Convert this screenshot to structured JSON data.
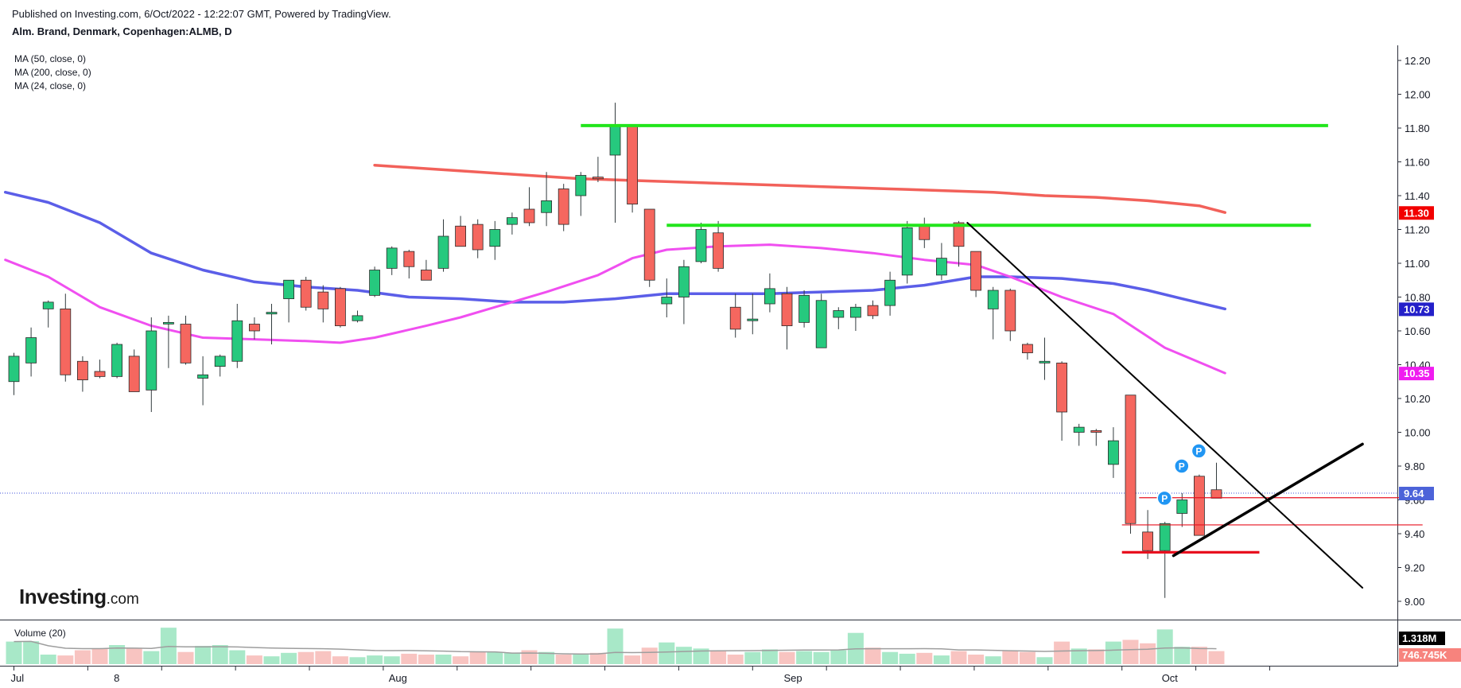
{
  "header": {
    "published": "Published on Investing.com, 6/Oct/2022 - 12:22:07 GMT, Powered by TradingView.",
    "symbol": "Alm. Brand, Denmark, Copenhagen:ALMB, D"
  },
  "legend": {
    "ma50": "MA (50, close, 0)",
    "ma200": "MA (200, close, 0)",
    "ma24": "MA (24, close, 0)",
    "volume": "Volume (20)"
  },
  "logo": {
    "text": "Investing",
    "suffix": ".com"
  },
  "colors": {
    "up": "#26c97e",
    "down": "#f5675f",
    "ma50": "#5b5ee8",
    "ma200": "#f2615a",
    "ma24": "#f04ff0",
    "support": "#e8111f",
    "resistance": "#22e51c",
    "trend": "#000000",
    "last": "#3f51d9",
    "vol_up": "#a8e8c8",
    "vol_down": "#f8c4c1"
  },
  "chart_data": {
    "type": "candlestick",
    "ylim": [
      8.95,
      12.28
    ],
    "y_ticks": [
      "12.20",
      "12.00",
      "11.80",
      "11.60",
      "11.40",
      "11.20",
      "11.00",
      "10.80",
      "10.60",
      "10.40",
      "10.20",
      "10.00",
      "9.80",
      "9.60",
      "9.40",
      "9.20",
      "9.00"
    ],
    "x_labels": [
      {
        "label": "Jul",
        "index": 0
      },
      {
        "label": "8",
        "index": 6
      },
      {
        "label": "Aug",
        "index": 22
      },
      {
        "label": "Sep",
        "index": 45
      },
      {
        "label": "Oct",
        "index": 67
      }
    ],
    "candles": [
      [
        10.3,
        10.47,
        10.22,
        10.45
      ],
      [
        10.41,
        10.62,
        10.33,
        10.56
      ],
      [
        10.73,
        10.78,
        10.62,
        10.77
      ],
      [
        10.73,
        10.82,
        10.3,
        10.34
      ],
      [
        10.42,
        10.45,
        10.24,
        10.31
      ],
      [
        10.36,
        10.43,
        10.32,
        10.33
      ],
      [
        10.33,
        10.53,
        10.32,
        10.52
      ],
      [
        10.45,
        10.49,
        10.26,
        10.24
      ],
      [
        10.25,
        10.68,
        10.12,
        10.6
      ],
      [
        10.65,
        10.69,
        10.38,
        10.65
      ],
      [
        10.64,
        10.69,
        10.4,
        10.41
      ],
      [
        10.32,
        10.45,
        10.16,
        10.34
      ],
      [
        10.39,
        10.46,
        10.33,
        10.45
      ],
      [
        10.42,
        10.76,
        10.38,
        10.66
      ],
      [
        10.64,
        10.68,
        10.55,
        10.6
      ],
      [
        10.7,
        10.76,
        10.52,
        10.71
      ],
      [
        10.79,
        10.9,
        10.65,
        10.9
      ],
      [
        10.9,
        10.92,
        10.72,
        10.74
      ],
      [
        10.83,
        10.87,
        10.65,
        10.73
      ],
      [
        10.85,
        10.86,
        10.62,
        10.63
      ],
      [
        10.66,
        10.72,
        10.65,
        10.69
      ],
      [
        10.81,
        10.98,
        10.8,
        10.96
      ],
      [
        10.97,
        11.1,
        10.93,
        11.09
      ],
      [
        11.07,
        11.08,
        10.91,
        10.98
      ],
      [
        10.96,
        11.02,
        10.9,
        10.9
      ],
      [
        10.97,
        11.26,
        10.95,
        11.16
      ],
      [
        11.22,
        11.28,
        11.1,
        11.1
      ],
      [
        11.23,
        11.26,
        11.03,
        11.08
      ],
      [
        11.1,
        11.25,
        11.02,
        11.2
      ],
      [
        11.23,
        11.3,
        11.17,
        11.27
      ],
      [
        11.32,
        11.45,
        11.22,
        11.24
      ],
      [
        11.3,
        11.54,
        11.22,
        11.37
      ],
      [
        11.44,
        11.47,
        11.19,
        11.23
      ],
      [
        11.4,
        11.54,
        11.28,
        11.52
      ],
      [
        11.51,
        11.63,
        11.48,
        11.5
      ],
      [
        11.64,
        11.95,
        11.24,
        11.82
      ],
      [
        11.82,
        11.82,
        11.3,
        11.35
      ],
      [
        11.32,
        11.32,
        10.86,
        10.9
      ],
      [
        10.76,
        10.91,
        10.68,
        10.8
      ],
      [
        10.8,
        11.02,
        10.64,
        10.98
      ],
      [
        11.01,
        11.24,
        11.0,
        11.2
      ],
      [
        11.18,
        11.25,
        10.95,
        10.97
      ],
      [
        10.74,
        10.82,
        10.56,
        10.61
      ],
      [
        10.66,
        10.82,
        10.58,
        10.67
      ],
      [
        10.76,
        10.94,
        10.71,
        10.85
      ],
      [
        10.82,
        10.86,
        10.49,
        10.63
      ],
      [
        10.65,
        10.84,
        10.62,
        10.81
      ],
      [
        10.5,
        10.82,
        10.5,
        10.78
      ],
      [
        10.68,
        10.74,
        10.61,
        10.72
      ],
      [
        10.68,
        10.76,
        10.6,
        10.74
      ],
      [
        10.75,
        10.78,
        10.67,
        10.69
      ],
      [
        10.75,
        10.95,
        10.69,
        10.9
      ],
      [
        10.93,
        11.25,
        10.88,
        11.21
      ],
      [
        11.23,
        11.27,
        11.09,
        11.14
      ],
      [
        10.93,
        11.12,
        10.9,
        11.03
      ],
      [
        11.24,
        11.25,
        10.98,
        11.1
      ],
      [
        11.07,
        11.07,
        10.8,
        10.84
      ],
      [
        10.73,
        10.86,
        10.55,
        10.84
      ],
      [
        10.84,
        10.85,
        10.54,
        10.6
      ],
      [
        10.52,
        10.53,
        10.43,
        10.47
      ],
      [
        10.41,
        10.56,
        10.31,
        10.42
      ],
      [
        10.41,
        10.42,
        9.95,
        10.12
      ],
      [
        10.0,
        10.05,
        9.92,
        10.03
      ],
      [
        10.01,
        10.02,
        9.92,
        10.0
      ],
      [
        9.81,
        10.03,
        9.73,
        9.95
      ],
      [
        10.22,
        10.22,
        9.4,
        9.46
      ],
      [
        9.41,
        9.54,
        9.25,
        9.3
      ],
      [
        9.3,
        9.47,
        9.02,
        9.46
      ],
      [
        9.52,
        9.64,
        9.44,
        9.6
      ],
      [
        9.74,
        9.75,
        9.4,
        9.39
      ],
      [
        9.66,
        9.82,
        9.62,
        9.61
      ]
    ],
    "volume_ylim": [
      0,
      2.2
    ],
    "volume_labels": [
      "1.318M",
      "746.745K"
    ],
    "volume": [
      1.3,
      1.32,
      0.55,
      0.5,
      0.8,
      0.9,
      1.1,
      0.9,
      0.75,
      2.1,
      0.7,
      1.05,
      1.1,
      0.8,
      0.5,
      0.45,
      0.65,
      0.7,
      0.75,
      0.45,
      0.4,
      0.5,
      0.45,
      0.6,
      0.55,
      0.55,
      0.45,
      0.7,
      0.7,
      0.65,
      0.8,
      0.7,
      0.55,
      0.6,
      0.65,
      2.05,
      0.5,
      0.95,
      1.25,
      1.0,
      0.9,
      0.8,
      0.55,
      0.7,
      0.85,
      0.7,
      0.75,
      0.7,
      0.8,
      1.8,
      0.95,
      0.7,
      0.6,
      0.65,
      0.5,
      0.75,
      0.55,
      0.45,
      0.75,
      0.7,
      0.4,
      1.3,
      0.9,
      0.85,
      1.3,
      1.4,
      1.2,
      2.0,
      1.0,
      1.0,
      0.75
    ],
    "ma200": [
      [
        21,
        11.58
      ],
      [
        24,
        11.56
      ],
      [
        27,
        11.54
      ],
      [
        30,
        11.52
      ],
      [
        33,
        11.5
      ],
      [
        36,
        11.49
      ],
      [
        39,
        11.48
      ],
      [
        42,
        11.47
      ],
      [
        45,
        11.46
      ],
      [
        48,
        11.45
      ],
      [
        51,
        11.44
      ],
      [
        54,
        11.43
      ],
      [
        57,
        11.42
      ],
      [
        60,
        11.4
      ],
      [
        63,
        11.39
      ],
      [
        66,
        11.37
      ],
      [
        69,
        11.34
      ],
      [
        70.5,
        11.3
      ]
    ],
    "ma50": [
      [
        -0.5,
        11.42
      ],
      [
        2,
        11.36
      ],
      [
        5,
        11.24
      ],
      [
        8,
        11.06
      ],
      [
        11,
        10.96
      ],
      [
        14,
        10.89
      ],
      [
        17,
        10.86
      ],
      [
        20,
        10.84
      ],
      [
        23,
        10.8
      ],
      [
        26,
        10.79
      ],
      [
        29,
        10.77
      ],
      [
        32,
        10.77
      ],
      [
        35,
        10.79
      ],
      [
        38,
        10.82
      ],
      [
        41,
        10.82
      ],
      [
        44,
        10.82
      ],
      [
        47,
        10.83
      ],
      [
        50,
        10.84
      ],
      [
        53,
        10.87
      ],
      [
        56,
        10.92
      ],
      [
        58,
        10.92
      ],
      [
        61,
        10.91
      ],
      [
        64,
        10.88
      ],
      [
        66,
        10.84
      ],
      [
        68,
        10.79
      ],
      [
        70.5,
        10.73
      ]
    ],
    "ma24": [
      [
        -0.5,
        11.02
      ],
      [
        2,
        10.92
      ],
      [
        5,
        10.74
      ],
      [
        8,
        10.63
      ],
      [
        11,
        10.56
      ],
      [
        14,
        10.55
      ],
      [
        17,
        10.54
      ],
      [
        19,
        10.53
      ],
      [
        21,
        10.56
      ],
      [
        24,
        10.63
      ],
      [
        26,
        10.68
      ],
      [
        28,
        10.74
      ],
      [
        31,
        10.83
      ],
      [
        34,
        10.93
      ],
      [
        36,
        11.03
      ],
      [
        38,
        11.08
      ],
      [
        41,
        11.1
      ],
      [
        44,
        11.11
      ],
      [
        47,
        11.09
      ],
      [
        50,
        11.06
      ],
      [
        53,
        11.02
      ],
      [
        56,
        10.99
      ],
      [
        58,
        10.92
      ],
      [
        61,
        10.8
      ],
      [
        64,
        10.7
      ],
      [
        67,
        10.5
      ],
      [
        70.5,
        10.35
      ]
    ],
    "price_labels": [
      {
        "value": 11.3,
        "label": "11.30"
      },
      {
        "value": 10.73,
        "label": "10.73"
      },
      {
        "value": 10.35,
        "label": "10.35"
      },
      {
        "value": 9.64,
        "label": "9.64"
      }
    ],
    "resistance_lines": [
      {
        "x1": 33,
        "x2": 76.5,
        "y": 11.815
      },
      {
        "x1": 38,
        "x2": 75.5,
        "y": 11.225
      }
    ],
    "support_lines": [
      {
        "x1": 65.5,
        "x2": 81,
        "y": 9.613,
        "w": 1.2
      },
      {
        "x1": 64.5,
        "x2": 82,
        "y": 9.452,
        "w": 1.2
      },
      {
        "x1": 64.5,
        "x2": 72.5,
        "y": 9.29,
        "w": 3.2
      }
    ],
    "trend_lines": [
      {
        "x1": 55.5,
        "y1": 11.24,
        "x2": 78.5,
        "y2": 9.08,
        "w": 2
      },
      {
        "x1": 67.5,
        "y1": 9.27,
        "x2": 78.5,
        "y2": 9.93,
        "w": 3.5
      }
    ],
    "markers": [
      {
        "index": 67,
        "value": 9.61,
        "label": "P"
      },
      {
        "index": 68,
        "value": 9.8,
        "label": "P"
      },
      {
        "index": 69,
        "value": 9.89,
        "label": "P"
      }
    ]
  }
}
